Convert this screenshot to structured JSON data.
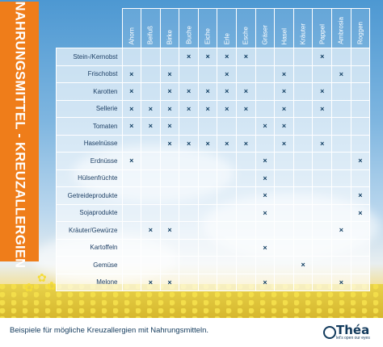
{
  "title": "NAHRUNGSMITTEL - KREUZALLERGIEN",
  "columns": [
    "Ahorn",
    "Beifuß",
    "Birke",
    "Buche",
    "Eiche",
    "Erle",
    "Esche",
    "Gräser",
    "Hasel",
    "Kräuter",
    "Pappel",
    "Ambrosia",
    "Roggen"
  ],
  "rows": [
    {
      "label": "Stein-/Kernobst",
      "marks": [
        0,
        0,
        0,
        1,
        1,
        1,
        1,
        0,
        0,
        0,
        1,
        0,
        0
      ]
    },
    {
      "label": "Frischobst",
      "marks": [
        1,
        0,
        1,
        0,
        0,
        1,
        0,
        0,
        1,
        0,
        0,
        1,
        0
      ]
    },
    {
      "label": "Karotten",
      "marks": [
        1,
        0,
        1,
        1,
        1,
        1,
        1,
        0,
        1,
        0,
        1,
        0,
        0
      ]
    },
    {
      "label": "Sellerie",
      "marks": [
        1,
        1,
        1,
        1,
        1,
        1,
        1,
        0,
        1,
        0,
        1,
        0,
        0
      ]
    },
    {
      "label": "Tomaten",
      "marks": [
        1,
        1,
        1,
        0,
        0,
        0,
        0,
        1,
        1,
        0,
        0,
        0,
        0
      ]
    },
    {
      "label": "Haselnüsse",
      "marks": [
        0,
        0,
        1,
        1,
        1,
        1,
        1,
        0,
        1,
        0,
        1,
        0,
        0
      ]
    },
    {
      "label": "Erdnüsse",
      "marks": [
        1,
        0,
        0,
        0,
        0,
        0,
        0,
        1,
        0,
        0,
        0,
        0,
        1
      ]
    },
    {
      "label": "Hülsenfrüchte",
      "marks": [
        0,
        0,
        0,
        0,
        0,
        0,
        0,
        1,
        0,
        0,
        0,
        0,
        0
      ]
    },
    {
      "label": "Getreideprodukte",
      "marks": [
        0,
        0,
        0,
        0,
        0,
        0,
        0,
        1,
        0,
        0,
        0,
        0,
        1
      ]
    },
    {
      "label": "Sojaprodukte",
      "marks": [
        0,
        0,
        0,
        0,
        0,
        0,
        0,
        1,
        0,
        0,
        0,
        0,
        1
      ]
    },
    {
      "label": "Kräuter/Gewürze",
      "marks": [
        0,
        1,
        1,
        0,
        0,
        0,
        0,
        0,
        0,
        0,
        0,
        1,
        0
      ]
    },
    {
      "label": "Kartoffeln",
      "marks": [
        0,
        0,
        0,
        0,
        0,
        0,
        0,
        1,
        0,
        0,
        0,
        0,
        0
      ]
    },
    {
      "label": "Gemüse",
      "marks": [
        0,
        0,
        0,
        0,
        0,
        0,
        0,
        0,
        0,
        1,
        0,
        0,
        0
      ]
    },
    {
      "label": "Melone",
      "marks": [
        0,
        1,
        1,
        0,
        0,
        0,
        0,
        1,
        0,
        0,
        0,
        1,
        0
      ]
    }
  ],
  "mark_symbol": "×",
  "footer": {
    "caption": "Beispiele für mögliche Kreuzallergien mit Nahrungsmitteln."
  },
  "logo": {
    "name": "Théa",
    "tagline": "let's open our eyes"
  },
  "colors": {
    "accent": "#ef7d1a",
    "mark": "#123f63",
    "text": "#1d3f64"
  }
}
